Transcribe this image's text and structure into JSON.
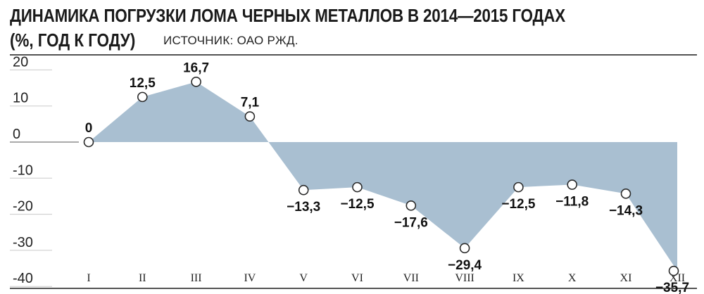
{
  "header": {
    "title": "ДИНАМИКА ПОГРУЗКИ ЛОМА ЧЕРНЫХ МЕТАЛЛОВ В 2014—2015 ГОДАХ",
    "unit": "(%, ГОД К ГОДУ)",
    "source": "ИСТОЧНИК: ОАО РЖД."
  },
  "colors": {
    "fill": "#a9bfd1",
    "gridline": "#c9c9c9",
    "marker_fill": "#ffffff",
    "marker_stroke": "#2a2a2a",
    "text": "#1a1a1a"
  },
  "chart_data": {
    "type": "area",
    "title": "ДИНАМИКА ПОГРУЗКИ ЛОМА ЧЕРНЫХ МЕТАЛЛОВ В 2014—2015 ГОДАХ",
    "subtitle": "(%, ГОД К ГОДУ)",
    "categories": [
      "I",
      "II",
      "III",
      "IV",
      "V",
      "VI",
      "VII",
      "VIII",
      "IX",
      "X",
      "XI",
      "XII"
    ],
    "values": [
      0,
      12.5,
      16.7,
      7.1,
      -13.3,
      -12.5,
      -17.6,
      -29.4,
      -12.5,
      -11.8,
      -14.3,
      -35.7
    ],
    "value_labels": [
      "0",
      "12,5",
      "16,7",
      "7,1",
      "−13,3",
      "−12,5",
      "−17,6",
      "−29,4",
      "−12,5",
      "−11,8",
      "−14,3",
      "−35,7"
    ],
    "label_position": [
      "above",
      "above",
      "above",
      "above",
      "below",
      "below",
      "below",
      "below",
      "below",
      "below",
      "below",
      "below"
    ],
    "yticks": [
      20,
      10,
      0,
      -10,
      -20,
      -30,
      -40
    ],
    "ytick_labels": [
      "20",
      "10",
      "0",
      "-10",
      "-20",
      "-30",
      "-40"
    ],
    "ylim": [
      -40,
      20
    ],
    "xlabel": "",
    "ylabel": "",
    "grid": "y-ticks-left"
  }
}
